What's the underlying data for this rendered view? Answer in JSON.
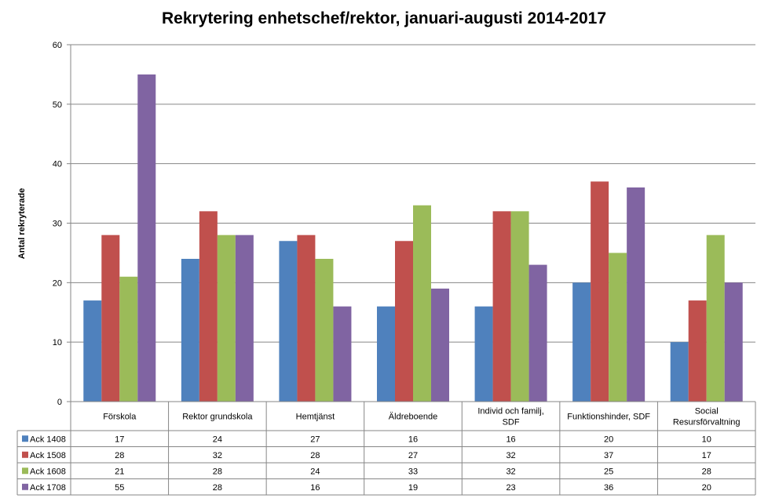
{
  "chart_data": {
    "type": "bar",
    "title": "Rekrytering enhetschef/rektor, januari-augusti 2014-2017",
    "ylabel": "Antal rekryterade",
    "xlabel": "",
    "ylim": [
      0,
      60
    ],
    "yticks": [
      0,
      10,
      20,
      30,
      40,
      50,
      60
    ],
    "grid": true,
    "legend": "data-table-left",
    "categories": [
      [
        "Förskola"
      ],
      [
        "Rektor grundskola"
      ],
      [
        "Hemtjänst"
      ],
      [
        "Äldreboende"
      ],
      [
        "Individ och familj,",
        "SDF"
      ],
      [
        "Funktionshinder, SDF"
      ],
      [
        "Social",
        "Resursförvaltning"
      ]
    ],
    "series": [
      {
        "name": "Ack 1408",
        "color": "#4F81BD",
        "values": [
          17,
          24,
          27,
          16,
          16,
          20,
          10
        ]
      },
      {
        "name": "Ack 1508",
        "color": "#C0504D",
        "values": [
          28,
          32,
          28,
          27,
          32,
          37,
          17
        ]
      },
      {
        "name": "Ack 1608",
        "color": "#9BBB59",
        "values": [
          21,
          28,
          24,
          33,
          32,
          25,
          28
        ]
      },
      {
        "name": "Ack 1708",
        "color": "#8064A2",
        "values": [
          55,
          28,
          16,
          19,
          23,
          36,
          20
        ]
      }
    ]
  }
}
